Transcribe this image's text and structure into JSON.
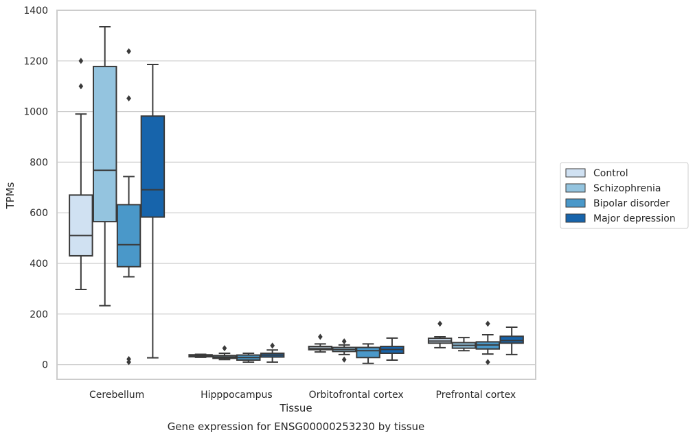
{
  "chart_data": {
    "type": "boxplot",
    "title": "",
    "caption": "Gene expression for ENSG00000253230 by tissue",
    "xlabel": "Tissue",
    "ylabel": "TPMs",
    "ylim": [
      -58,
      1400
    ],
    "yticks": [
      0,
      200,
      400,
      600,
      800,
      1000,
      1200,
      1400
    ],
    "grid": "horizontal",
    "legend_position": "right",
    "categories": [
      "Cerebellum",
      "Hipppocampus",
      "Orbitofrontal cortex",
      "Prefrontal cortex"
    ],
    "series": [
      {
        "name": "Control",
        "color": "#d0e1f2",
        "boxes": [
          {
            "min": 297,
            "q1": 430,
            "median": 510,
            "q3": 670,
            "max": 990,
            "outliers": [
              1100,
              1200
            ]
          },
          {
            "min": 29,
            "q1": 31,
            "median": 35,
            "q3": 39,
            "max": 41,
            "outliers": []
          },
          {
            "min": 50,
            "q1": 59,
            "median": 65,
            "q3": 72,
            "max": 82,
            "outliers": [
              110
            ]
          },
          {
            "min": 67,
            "q1": 85,
            "median": 93,
            "q3": 104,
            "max": 110,
            "outliers": [
              162
            ]
          }
        ]
      },
      {
        "name": "Schizophrenia",
        "color": "#94c4df",
        "boxes": [
          {
            "min": 233,
            "q1": 565,
            "median": 768,
            "q3": 1178,
            "max": 1335,
            "outliers": []
          },
          {
            "min": 20,
            "q1": 25,
            "median": 30,
            "q3": 36,
            "max": 45,
            "outliers": [
              65
            ]
          },
          {
            "min": 40,
            "q1": 52,
            "median": 60,
            "q3": 68,
            "max": 78,
            "outliers": [
              20,
              92
            ]
          },
          {
            "min": 55,
            "q1": 65,
            "median": 76,
            "q3": 87,
            "max": 107,
            "outliers": []
          }
        ]
      },
      {
        "name": "Bipolar disorder",
        "color": "#4a98c9",
        "boxes": [
          {
            "min": 347,
            "q1": 387,
            "median": 474,
            "q3": 632,
            "max": 743,
            "outliers": [
              10,
              22,
              1052,
              1238
            ]
          },
          {
            "min": 10,
            "q1": 18,
            "median": 28,
            "q3": 38,
            "max": 45,
            "outliers": []
          },
          {
            "min": 5,
            "q1": 28,
            "median": 55,
            "q3": 68,
            "max": 82,
            "outliers": []
          },
          {
            "min": 42,
            "q1": 62,
            "median": 78,
            "q3": 90,
            "max": 118,
            "outliers": [
              10,
              162
            ]
          }
        ]
      },
      {
        "name": "Major depression",
        "color": "#1764ab",
        "boxes": [
          {
            "min": 27,
            "q1": 583,
            "median": 691,
            "q3": 982,
            "max": 1186,
            "outliers": []
          },
          {
            "min": 10,
            "q1": 30,
            "median": 38,
            "q3": 45,
            "max": 58,
            "outliers": [
              75
            ]
          },
          {
            "min": 18,
            "q1": 45,
            "median": 60,
            "q3": 72,
            "max": 105,
            "outliers": []
          },
          {
            "min": 40,
            "q1": 85,
            "median": 95,
            "q3": 112,
            "max": 148,
            "outliers": []
          }
        ]
      }
    ]
  }
}
